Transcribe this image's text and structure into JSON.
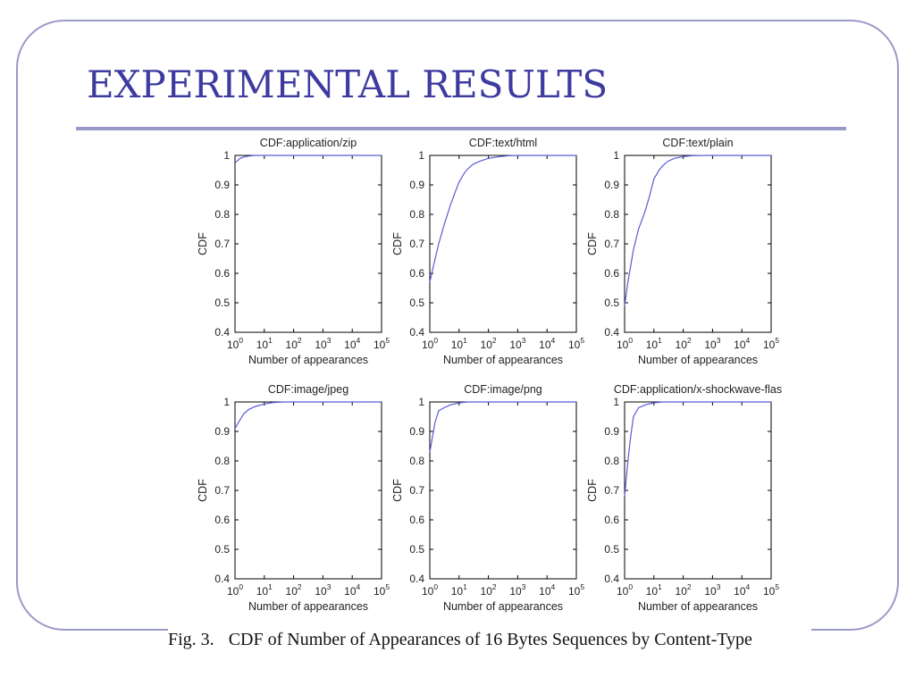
{
  "slide": {
    "title": "EXPERIMENTAL RESULTS",
    "colors": {
      "title": "#3d3aa0",
      "frame": "#9a9ac8",
      "line": "#5b5bd6"
    }
  },
  "caption": {
    "label": "Fig. 3.",
    "text": "CDF of Number of Appearances of 16 Bytes Sequences by Content-Type"
  },
  "chart_data": [
    {
      "type": "line",
      "title": "CDF:application/zip",
      "xlabel": "Number of appearances",
      "ylabel": "CDF",
      "xscale": "log",
      "xlim": [
        1,
        100000
      ],
      "ylim": [
        0.4,
        1
      ],
      "xticks": [
        "10^0",
        "10^1",
        "10^2",
        "10^3",
        "10^4",
        "10^5"
      ],
      "yticks": [
        "0.4",
        "0.5",
        "0.6",
        "0.7",
        "0.8",
        "0.9",
        "1"
      ],
      "series": [
        {
          "x": [
            1,
            1.5,
            2,
            3,
            5,
            100000
          ],
          "y": [
            0.975,
            0.99,
            0.995,
            0.998,
            1.0,
            1.0
          ]
        }
      ]
    },
    {
      "type": "line",
      "title": "CDF:text/html",
      "xlabel": "Number of appearances",
      "ylabel": "CDF",
      "xscale": "log",
      "xlim": [
        1,
        100000
      ],
      "ylim": [
        0.4,
        1
      ],
      "xticks": [
        "10^0",
        "10^1",
        "10^2",
        "10^3",
        "10^4",
        "10^5"
      ],
      "yticks": [
        "0.4",
        "0.5",
        "0.6",
        "0.7",
        "0.8",
        "0.9",
        "1"
      ],
      "series": [
        {
          "x": [
            1,
            1.3,
            2,
            3,
            5,
            7,
            10,
            15,
            20,
            30,
            50,
            100,
            200,
            500,
            1000,
            100000
          ],
          "y": [
            0.57,
            0.62,
            0.7,
            0.76,
            0.83,
            0.87,
            0.91,
            0.94,
            0.955,
            0.97,
            0.98,
            0.99,
            0.995,
            0.999,
            1.0,
            1.0
          ]
        }
      ]
    },
    {
      "type": "line",
      "title": "CDF:text/plain",
      "xlabel": "Number of appearances",
      "ylabel": "CDF",
      "xscale": "log",
      "xlim": [
        1,
        100000
      ],
      "ylim": [
        0.4,
        1
      ],
      "xticks": [
        "10^0",
        "10^1",
        "10^2",
        "10^3",
        "10^4",
        "10^5"
      ],
      "yticks": [
        "0.4",
        "0.5",
        "0.6",
        "0.7",
        "0.8",
        "0.9",
        "1"
      ],
      "series": [
        {
          "x": [
            1,
            1.3,
            2,
            3,
            5,
            7,
            10,
            15,
            20,
            30,
            50,
            100,
            200,
            500,
            100000
          ],
          "y": [
            0.49,
            0.57,
            0.68,
            0.75,
            0.81,
            0.86,
            0.92,
            0.95,
            0.965,
            0.98,
            0.99,
            0.996,
            0.999,
            1.0,
            1.0
          ]
        }
      ]
    },
    {
      "type": "line",
      "title": "CDF:image/jpeg",
      "xlabel": "Number of appearances",
      "ylabel": "CDF",
      "xscale": "log",
      "xlim": [
        1,
        100000
      ],
      "ylim": [
        0.4,
        1
      ],
      "xticks": [
        "10^0",
        "10^1",
        "10^2",
        "10^3",
        "10^4",
        "10^5"
      ],
      "yticks": [
        "0.4",
        "0.5",
        "0.6",
        "0.7",
        "0.8",
        "0.9",
        "1"
      ],
      "series": [
        {
          "x": [
            1,
            1.5,
            2,
            3,
            5,
            10,
            20,
            50,
            100000
          ],
          "y": [
            0.91,
            0.94,
            0.96,
            0.975,
            0.985,
            0.993,
            0.998,
            1.0,
            1.0
          ]
        }
      ]
    },
    {
      "type": "line",
      "title": "CDF:image/png",
      "xlabel": "Number of appearances",
      "ylabel": "CDF",
      "xscale": "log",
      "xlim": [
        1,
        100000
      ],
      "ylim": [
        0.4,
        1
      ],
      "xticks": [
        "10^0",
        "10^1",
        "10^2",
        "10^3",
        "10^4",
        "10^5"
      ],
      "yticks": [
        "0.4",
        "0.5",
        "0.6",
        "0.7",
        "0.8",
        "0.9",
        "1"
      ],
      "series": [
        {
          "x": [
            1,
            1.5,
            2,
            3,
            5,
            10,
            20,
            100000
          ],
          "y": [
            0.83,
            0.93,
            0.97,
            0.98,
            0.99,
            0.997,
            1.0,
            1.0
          ]
        }
      ]
    },
    {
      "type": "line",
      "title": "CDF:application/x-shockwave-flas",
      "xlabel": "Number of appearances",
      "ylabel": "CDF",
      "xscale": "log",
      "xlim": [
        1,
        100000
      ],
      "ylim": [
        0.4,
        1
      ],
      "xticks": [
        "10^0",
        "10^1",
        "10^2",
        "10^3",
        "10^4",
        "10^5"
      ],
      "yticks": [
        "0.4",
        "0.5",
        "0.6",
        "0.7",
        "0.8",
        "0.9",
        "1"
      ],
      "series": [
        {
          "x": [
            1,
            1.3,
            1.6,
            2,
            3,
            5,
            10,
            20,
            100000
          ],
          "y": [
            0.68,
            0.8,
            0.88,
            0.95,
            0.98,
            0.99,
            0.997,
            1.0,
            1.0
          ]
        }
      ]
    }
  ]
}
